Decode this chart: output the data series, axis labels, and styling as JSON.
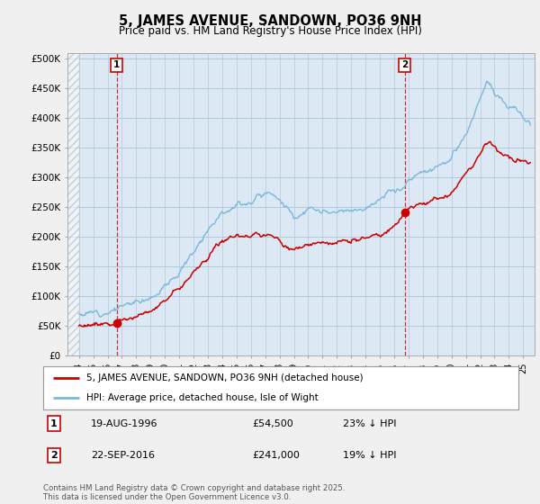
{
  "title": "5, JAMES AVENUE, SANDOWN, PO36 9NH",
  "subtitle": "Price paid vs. HM Land Registry's House Price Index (HPI)",
  "ylim": [
    0,
    510000
  ],
  "yticks": [
    0,
    50000,
    100000,
    150000,
    200000,
    250000,
    300000,
    350000,
    400000,
    450000,
    500000
  ],
  "ytick_labels": [
    "£0",
    "£50K",
    "£100K",
    "£150K",
    "£200K",
    "£250K",
    "£300K",
    "£350K",
    "£400K",
    "£450K",
    "£500K"
  ],
  "hpi_color": "#7db8d8",
  "price_color": "#cc0000",
  "sale1_year": 1996.63,
  "sale1_price": 54500,
  "sale2_year": 2016.73,
  "sale2_price": 241000,
  "legend_line1": "5, JAMES AVENUE, SANDOWN, PO36 9NH (detached house)",
  "legend_line2": "HPI: Average price, detached house, Isle of Wight",
  "footnote": "Contains HM Land Registry data © Crown copyright and database right 2025.\nThis data is licensed under the Open Government Licence v3.0.",
  "background_color": "#f0f0f0",
  "plot_bg_color": "#dce9f5",
  "grid_color": "#b0c8dc"
}
